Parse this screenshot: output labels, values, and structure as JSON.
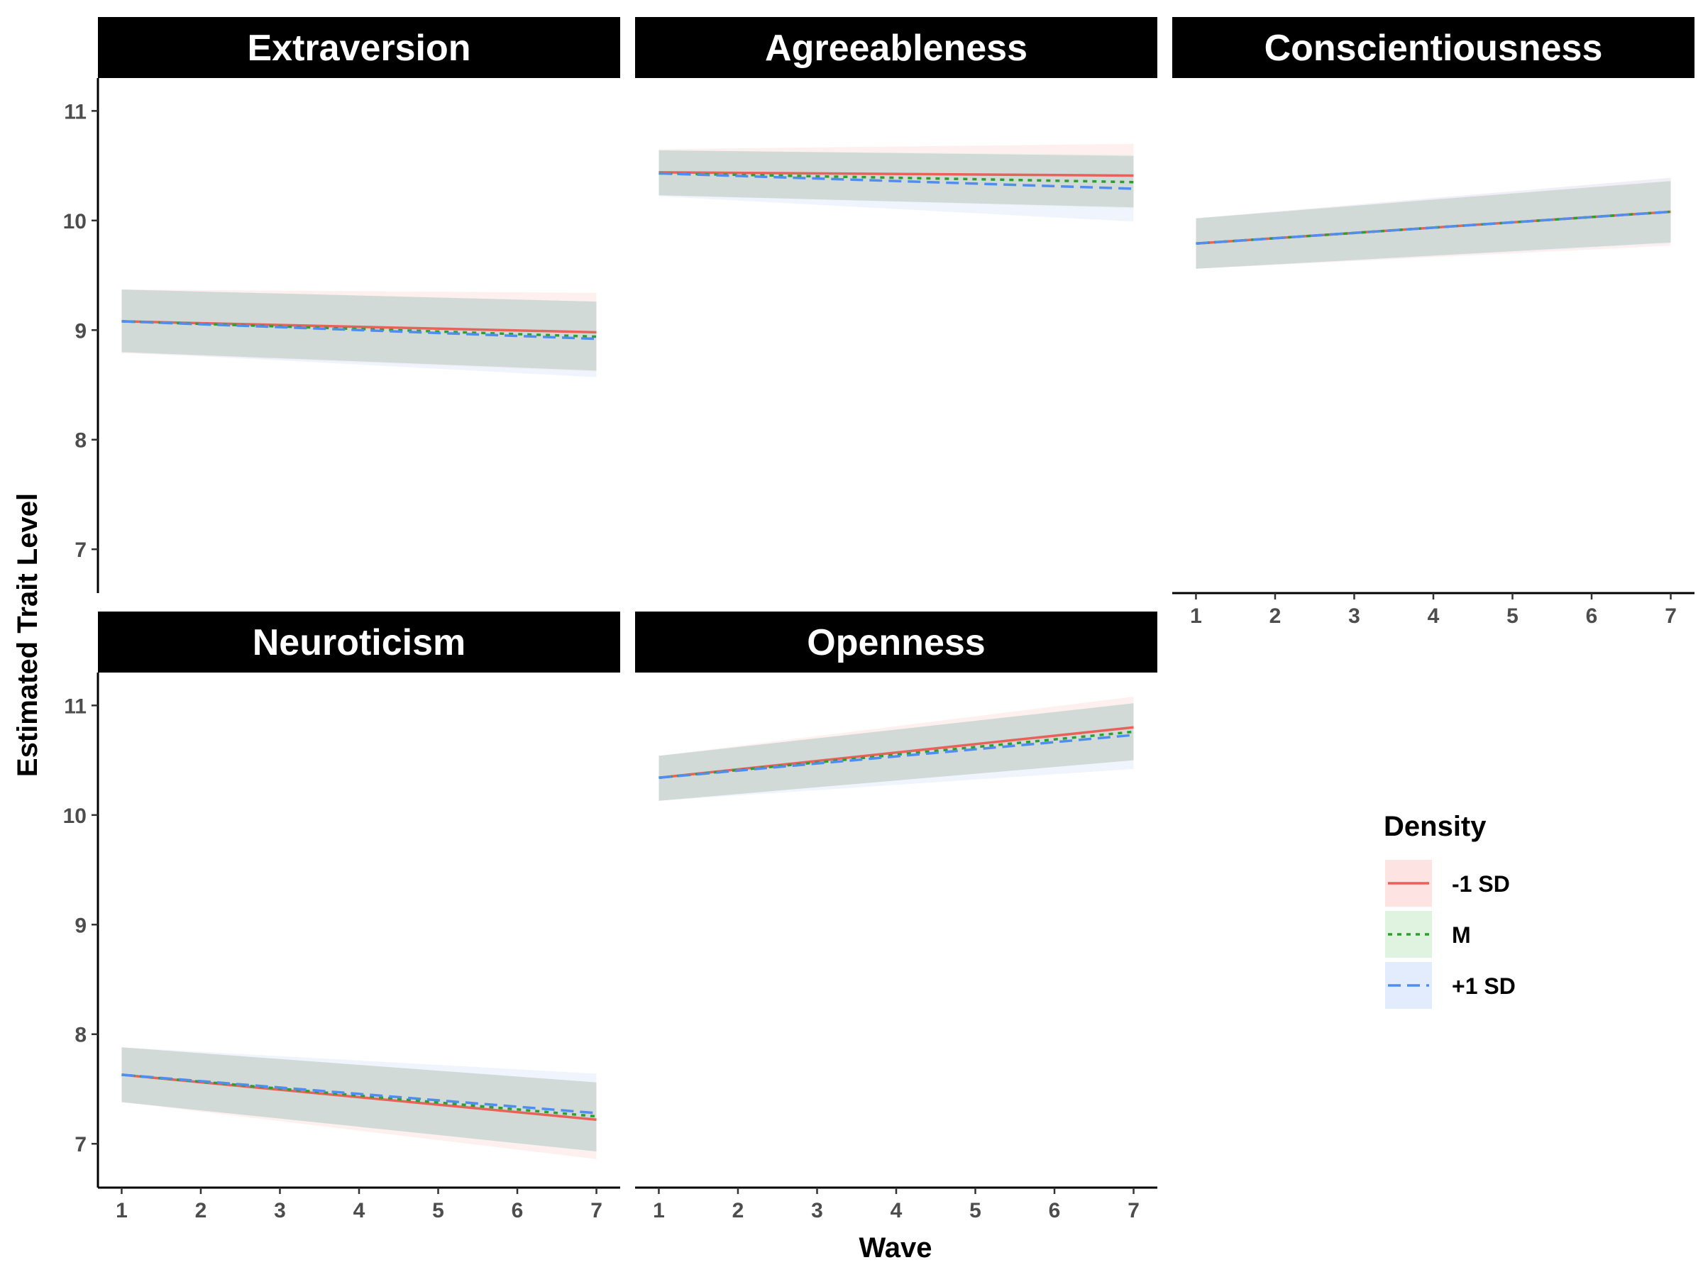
{
  "chart_data": {
    "type": "line",
    "xlabel": "Wave",
    "ylabel": "Estimated Trait Level",
    "x": [
      1,
      2,
      3,
      4,
      5,
      6,
      7
    ],
    "xlim": [
      0.7,
      7.3
    ],
    "ylim": [
      6.6,
      11.3
    ],
    "yticks": [
      7,
      8,
      9,
      10,
      11
    ],
    "legend": {
      "title": "Density",
      "position": "right",
      "entries": [
        {
          "label": "-1 SD",
          "color": "#e8625a",
          "fill": "#fde3e2",
          "dash": "solid"
        },
        {
          "label": "M",
          "color": "#2ca02c",
          "fill": "#e0f2e0",
          "dash": "dotted"
        },
        {
          "label": "+1 SD",
          "color": "#4f8ef0",
          "fill": "#e3ecfc",
          "dash": "dashed"
        }
      ]
    },
    "panels": [
      {
        "title": "Extraversion",
        "series": [
          {
            "name": "-1 SD",
            "start": 9.08,
            "end": 8.98,
            "lower": [
              8.79,
              8.62
            ],
            "upper": [
              9.37,
              9.34
            ]
          },
          {
            "name": "M",
            "start": 9.08,
            "end": 8.94,
            "lower": [
              8.8,
              8.63
            ],
            "upper": [
              9.37,
              9.26
            ]
          },
          {
            "name": "+1 SD",
            "start": 9.08,
            "end": 8.92,
            "lower": [
              8.8,
              8.57
            ],
            "upper": [
              9.37,
              9.26
            ]
          }
        ]
      },
      {
        "title": "Agreeableness",
        "series": [
          {
            "name": "-1 SD",
            "start": 10.44,
            "end": 10.41,
            "lower": [
              10.23,
              10.12
            ],
            "upper": [
              10.65,
              10.7
            ]
          },
          {
            "name": "M",
            "start": 10.43,
            "end": 10.35,
            "lower": [
              10.23,
              10.11
            ],
            "upper": [
              10.64,
              10.6
            ]
          },
          {
            "name": "+1 SD",
            "start": 10.43,
            "end": 10.29,
            "lower": [
              10.22,
              9.99
            ],
            "upper": [
              10.64,
              10.59
            ]
          }
        ]
      },
      {
        "title": "Conscientiousness",
        "series": [
          {
            "name": "-1 SD",
            "start": 9.79,
            "end": 10.08,
            "lower": [
              9.56,
              9.77
            ],
            "upper": [
              10.02,
              10.39
            ]
          },
          {
            "name": "M",
            "start": 9.79,
            "end": 10.08,
            "lower": [
              9.56,
              9.8
            ],
            "upper": [
              10.02,
              10.36
            ]
          },
          {
            "name": "+1 SD",
            "start": 9.79,
            "end": 10.08,
            "lower": [
              9.56,
              9.79
            ],
            "upper": [
              10.02,
              10.39
            ]
          }
        ]
      },
      {
        "title": "Neuroticism",
        "series": [
          {
            "name": "-1 SD",
            "start": 7.63,
            "end": 7.22,
            "lower": [
              7.38,
              6.86
            ],
            "upper": [
              7.88,
              7.56
            ]
          },
          {
            "name": "M",
            "start": 7.63,
            "end": 7.25,
            "lower": [
              7.38,
              6.93
            ],
            "upper": [
              7.88,
              7.56
            ]
          },
          {
            "name": "+1 SD",
            "start": 7.63,
            "end": 7.28,
            "lower": [
              7.38,
              6.93
            ],
            "upper": [
              7.88,
              7.64
            ]
          }
        ]
      },
      {
        "title": "Openness",
        "series": [
          {
            "name": "-1 SD",
            "start": 10.34,
            "end": 10.8,
            "lower": [
              10.13,
              10.5
            ],
            "upper": [
              10.54,
              11.08
            ]
          },
          {
            "name": "M",
            "start": 10.34,
            "end": 10.76,
            "lower": [
              10.13,
              10.5
            ],
            "upper": [
              10.54,
              11.02
            ]
          },
          {
            "name": "+1 SD",
            "start": 10.34,
            "end": 10.73,
            "lower": [
              10.13,
              10.42
            ],
            "upper": [
              10.54,
              11.02
            ]
          }
        ]
      }
    ]
  }
}
